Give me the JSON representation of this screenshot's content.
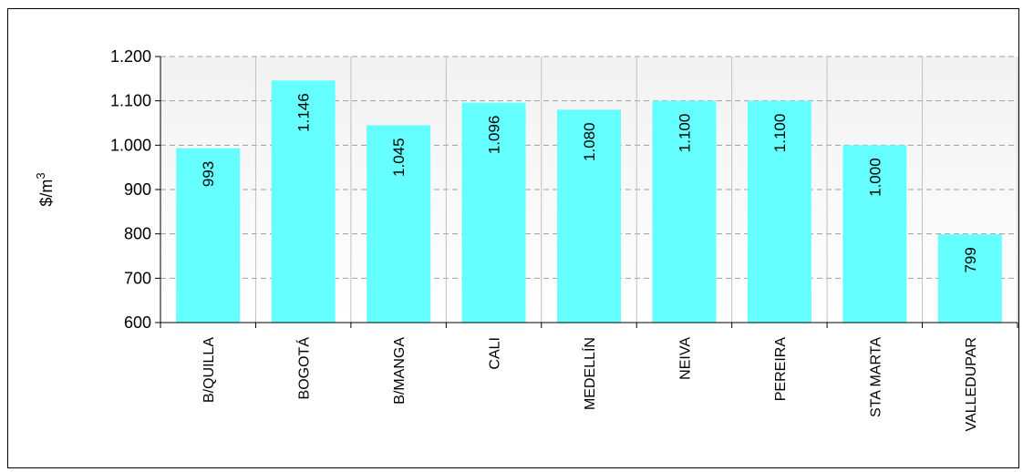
{
  "chart_data": {
    "type": "bar",
    "title": "",
    "xlabel": "",
    "ylabel": "$/m",
    "ylabel_superscript": "3",
    "categories": [
      "B/QUILLA",
      "BOGOTÁ",
      "B/MANGA",
      "CALI",
      "MEDELLÍN",
      "NEIVA",
      "PEREIRA",
      "STA MARTA",
      "VALLEDUPAR"
    ],
    "values": [
      993,
      1146,
      1045,
      1096,
      1080,
      1100,
      1100,
      1000,
      799
    ],
    "value_labels": [
      "993",
      "1.146",
      "1.045",
      "1.096",
      "1.080",
      "1.100",
      "1.100",
      "1.000",
      "799"
    ],
    "ylim": [
      600,
      1200
    ],
    "yticks": [
      600,
      700,
      800,
      900,
      1000,
      1100,
      1200
    ],
    "ytick_labels": [
      "600",
      "700",
      "800",
      "900",
      "1.000",
      "1.100",
      "1.200"
    ],
    "grid": true,
    "legend": "none",
    "bar_color": "#66ffff"
  }
}
